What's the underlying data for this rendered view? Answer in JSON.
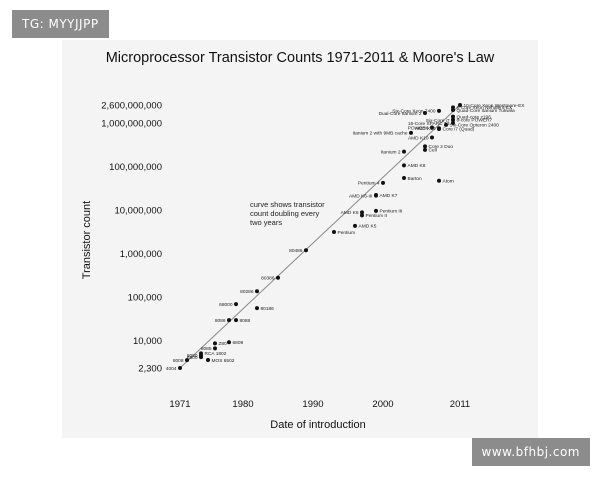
{
  "watermark_top": "TG: MYYJJPP",
  "watermark_bottom": "www.bfhbj.com",
  "chart_data": {
    "type": "scatter",
    "title": "Microprocessor Transistor Counts 1971-2011 & Moore's Law",
    "xlabel": "Date of introduction",
    "ylabel": "Transistor count",
    "scale_y": "log",
    "xlim": [
      1971,
      2011
    ],
    "ylim": [
      2300,
      2600000000
    ],
    "x_ticks": [
      "1971",
      "1980",
      "1990",
      "2000",
      "2011"
    ],
    "x_tick_values": [
      1971,
      1980,
      1990,
      2000,
      2011
    ],
    "y_ticks": [
      "2,300",
      "10,000",
      "100,000",
      "1,000,000",
      "10,000,000",
      "100,000,000",
      "1,000,000,000",
      "2,600,000,000"
    ],
    "y_tick_values": [
      2300,
      10000,
      100000,
      1000000,
      10000000,
      100000000,
      1000000000,
      2600000000
    ],
    "annotation": "curve shows transistor count doubling every two years",
    "trend_line": {
      "x": [
        1971,
        2011
      ],
      "y": [
        2300,
        2600000000
      ]
    },
    "points": [
      {
        "label": "4004",
        "x": 1971,
        "y": 2300
      },
      {
        "label": "8008",
        "x": 1972,
        "y": 3500
      },
      {
        "label": "RCA 1802",
        "x": 1974,
        "y": 5000
      },
      {
        "label": "8080",
        "x": 1974,
        "y": 4500
      },
      {
        "label": "6800",
        "x": 1974,
        "y": 4100
      },
      {
        "label": "8085",
        "x": 1976,
        "y": 6500
      },
      {
        "label": "Z80",
        "x": 1976,
        "y": 8500
      },
      {
        "label": "MOS 6502",
        "x": 1975,
        "y": 3510
      },
      {
        "label": "6809",
        "x": 1978,
        "y": 9000
      },
      {
        "label": "8086",
        "x": 1978,
        "y": 29000
      },
      {
        "label": "8088",
        "x": 1979,
        "y": 29000
      },
      {
        "label": "68000",
        "x": 1979,
        "y": 68000
      },
      {
        "label": "80186",
        "x": 1982,
        "y": 55000
      },
      {
        "label": "80286",
        "x": 1982,
        "y": 134000
      },
      {
        "label": "80386",
        "x": 1985,
        "y": 275000
      },
      {
        "label": "80486",
        "x": 1989,
        "y": 1180000
      },
      {
        "label": "Pentium",
        "x": 1993,
        "y": 3100000
      },
      {
        "label": "AMD K5",
        "x": 1996,
        "y": 4300000
      },
      {
        "label": "Pentium II",
        "x": 1997,
        "y": 7500000
      },
      {
        "label": "AMD K6",
        "x": 1997,
        "y": 8800000
      },
      {
        "label": "Pentium III",
        "x": 1999,
        "y": 9500000
      },
      {
        "label": "AMD K6-III",
        "x": 1999,
        "y": 21300000
      },
      {
        "label": "AMD K7",
        "x": 1999,
        "y": 22000000
      },
      {
        "label": "Pentium 4",
        "x": 2000,
        "y": 42000000
      },
      {
        "label": "Barton",
        "x": 2003,
        "y": 54300000
      },
      {
        "label": "AMD K8",
        "x": 2003,
        "y": 105900000
      },
      {
        "label": "Atom",
        "x": 2008,
        "y": 47000000
      },
      {
        "label": "Itanium 2",
        "x": 2003,
        "y": 220000000
      },
      {
        "label": "Cell",
        "x": 2006,
        "y": 241000000
      },
      {
        "label": "Core 2 Duo",
        "x": 2006,
        "y": 291000000
      },
      {
        "label": "AMD K10",
        "x": 2007,
        "y": 463000000
      },
      {
        "label": "Core i7 (Quad)",
        "x": 2008,
        "y": 731000000
      },
      {
        "label": "Itanium 2 with 9MB cache",
        "x": 2004,
        "y": 592000000
      },
      {
        "label": "Six-Core Opteron 2400",
        "x": 2009,
        "y": 904000000
      },
      {
        "label": "POWER6",
        "x": 2007,
        "y": 789000000
      },
      {
        "label": "AMD K10",
        "x": 2008,
        "y": 758000000
      },
      {
        "label": "Dual-Core Itanium 2",
        "x": 2006,
        "y": 1700000000
      },
      {
        "label": "8-Core Xeon Nehalem-EX",
        "x": 2010,
        "y": 2300000000
      },
      {
        "label": "Quad-Core Itanium Tukwila",
        "x": 2010,
        "y": 2000000000
      },
      {
        "label": "Quad-core z196",
        "x": 2010,
        "y": 1400000000
      },
      {
        "label": "8-core POWER7",
        "x": 2010,
        "y": 1200000000
      },
      {
        "label": "10-Core Xeon Westmere-EX",
        "x": 2011,
        "y": 2600000000
      },
      {
        "label": "Six-Core Xeon 7400",
        "x": 2008,
        "y": 1900000000
      },
      {
        "label": "Six-Core i7",
        "x": 2010,
        "y": 1170000000
      },
      {
        "label": "16-Core SPARC T3",
        "x": 2010,
        "y": 1000000000
      }
    ]
  }
}
